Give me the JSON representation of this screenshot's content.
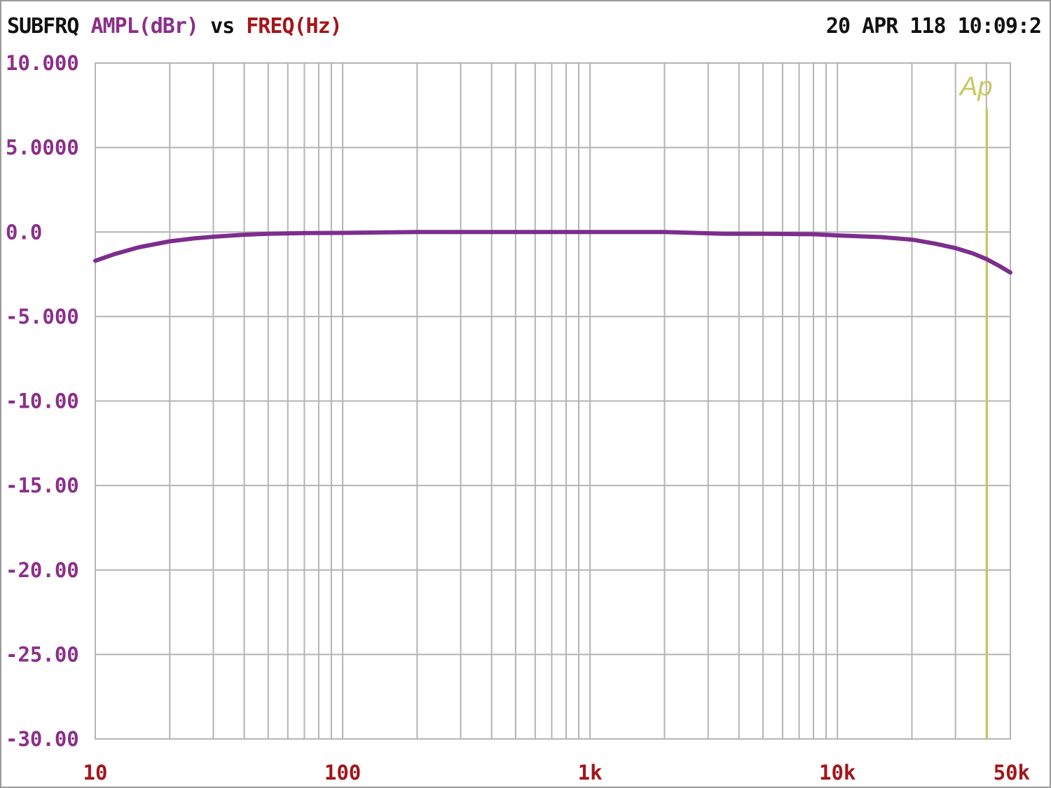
{
  "header": {
    "measure": "SUBFRQ",
    "y_quantity": "AMPL(dBr)",
    "vs": "vs",
    "x_quantity": "FREQ(Hz)",
    "timestamp": "20 APR 118 10:09:2"
  },
  "logo": {
    "text": "Ap"
  },
  "colors": {
    "y_axis": "#8a2f8a",
    "x_axis": "#a3151a",
    "trace": "#7d2d8e",
    "grid": "#b4b4b4",
    "logo": "#c8c860"
  },
  "chart_data": {
    "type": "line",
    "x_scale": "log",
    "xlim": [
      10,
      50000
    ],
    "ylim": [
      -30,
      10
    ],
    "grid": true,
    "y_ticks": [
      10,
      5,
      0,
      -5,
      -10,
      -15,
      -20,
      -25,
      -30
    ],
    "y_tick_labels": [
      "10.000",
      "5.0000",
      "0.0",
      "-5.000",
      "-10.00",
      "-15.00",
      "-20.00",
      "-25.00",
      "-30.00"
    ],
    "x_ticks": [
      10,
      100,
      1000,
      10000,
      50000
    ],
    "x_tick_labels": [
      "10",
      "100",
      "1k",
      "10k",
      "50k"
    ],
    "series": [
      {
        "x": [
          10,
          12,
          15,
          20,
          25,
          30,
          40,
          50,
          70,
          100,
          200,
          500,
          1000,
          2000,
          3500,
          5000,
          8000,
          10000,
          15000,
          20000,
          25000,
          30000,
          35000,
          40000,
          45000,
          50000
        ],
        "y": [
          -1.7,
          -1.3,
          -0.9,
          -0.55,
          -0.38,
          -0.28,
          -0.16,
          -0.1,
          -0.06,
          -0.05,
          0.0,
          0.0,
          0.0,
          0.0,
          -0.1,
          -0.1,
          -0.13,
          -0.2,
          -0.3,
          -0.45,
          -0.7,
          -0.95,
          -1.25,
          -1.6,
          -2.0,
          -2.4
        ]
      }
    ]
  }
}
